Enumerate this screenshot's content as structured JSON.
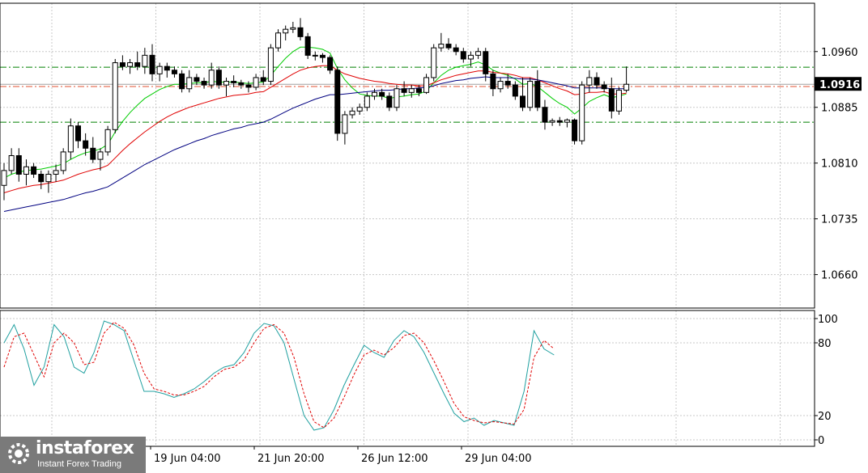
{
  "branding": {
    "name": "instaforex",
    "tagline": "Instant Forex Trading"
  },
  "last_price_label": "1.0916",
  "chart_data": [
    {
      "type": "candlestick",
      "symbol_panel": "price",
      "ylim": [
        1.0615,
        1.1025
      ],
      "y_ticks": [
        1.096,
        1.0885,
        1.081,
        1.0735,
        1.066
      ],
      "y_tick_labels": [
        "1.0960",
        "1.0885",
        "1.0810",
        "1.0735",
        "1.0660"
      ],
      "x_tick_labels": [
        "19 Jun 04:00",
        "21 Jun 20:00",
        "26 Jun 12:00",
        "29 Jun 04:00"
      ],
      "last_price": 1.0916,
      "horizontal_levels": [
        {
          "value": 1.0939,
          "color": "#008000",
          "style": "dash-dot"
        },
        {
          "value": 1.0913,
          "color": "#e05030",
          "style": "dash-dot"
        },
        {
          "value": 1.0865,
          "color": "#008000",
          "style": "dash-dot"
        }
      ],
      "candles": [
        [
          1.078,
          1.081,
          1.076,
          1.08
        ],
        [
          1.08,
          1.083,
          1.0795,
          1.082
        ],
        [
          1.082,
          1.083,
          1.0785,
          1.0795
        ],
        [
          1.0795,
          1.0815,
          1.078,
          1.0805
        ],
        [
          1.0805,
          1.081,
          1.079,
          1.0795
        ],
        [
          1.0795,
          1.08,
          1.0775,
          1.0785
        ],
        [
          1.0785,
          1.08,
          1.077,
          1.0795
        ],
        [
          1.0795,
          1.0808,
          1.0785,
          1.08
        ],
        [
          1.08,
          1.083,
          1.0795,
          1.0825
        ],
        [
          1.0825,
          1.087,
          1.0815,
          1.086
        ],
        [
          1.086,
          1.0865,
          1.083,
          1.084
        ],
        [
          1.084,
          1.085,
          1.082,
          1.083
        ],
        [
          1.083,
          1.0845,
          1.081,
          1.0815
        ],
        [
          1.0815,
          1.083,
          1.08,
          1.0825
        ],
        [
          1.0825,
          1.086,
          1.082,
          1.0855
        ],
        [
          1.0855,
          1.095,
          1.085,
          1.0945
        ],
        [
          1.0945,
          1.0955,
          1.0935,
          1.094
        ],
        [
          1.094,
          1.095,
          1.093,
          1.0945
        ],
        [
          1.0945,
          1.096,
          1.0935,
          1.094
        ],
        [
          1.094,
          1.0965,
          1.093,
          1.0955
        ],
        [
          1.0955,
          1.097,
          1.092,
          1.093
        ],
        [
          1.093,
          1.0945,
          1.092,
          1.094
        ],
        [
          1.094,
          1.0945,
          1.0925,
          1.0935
        ],
        [
          1.0935,
          1.094,
          1.0925,
          1.093
        ],
        [
          1.093,
          1.0935,
          1.0905,
          1.091
        ],
        [
          1.091,
          1.0935,
          1.0905,
          1.0925
        ],
        [
          1.0925,
          1.093,
          1.0915,
          1.092
        ],
        [
          1.092,
          1.0925,
          1.091,
          1.0915
        ],
        [
          1.0915,
          1.0945,
          1.091,
          1.0935
        ],
        [
          1.0935,
          1.094,
          1.091,
          1.0915
        ],
        [
          1.0915,
          1.0925,
          1.09,
          1.092
        ],
        [
          1.092,
          1.0928,
          1.0912,
          1.0918
        ],
        [
          1.0918,
          1.0922,
          1.091,
          1.0915
        ],
        [
          1.0915,
          1.092,
          1.0905,
          1.0912
        ],
        [
          1.0912,
          1.093,
          1.0908,
          1.0925
        ],
        [
          1.0925,
          1.0935,
          1.0915,
          1.092
        ],
        [
          1.092,
          1.097,
          1.0915,
          1.0965
        ],
        [
          1.0965,
          1.099,
          1.096,
          1.0985
        ],
        [
          1.0985,
          1.0995,
          1.0975,
          1.099
        ],
        [
          1.099,
          1.1,
          1.0985,
          1.0992
        ],
        [
          1.0992,
          1.1005,
          1.0975,
          1.098
        ],
        [
          1.098,
          1.0985,
          1.095,
          1.0955
        ],
        [
          1.0955,
          1.096,
          1.0948,
          1.0955
        ],
        [
          1.0955,
          1.0958,
          1.0945,
          1.0952
        ],
        [
          1.0952,
          1.0955,
          1.093,
          1.0935
        ],
        [
          1.0935,
          1.094,
          1.084,
          1.085
        ],
        [
          1.085,
          1.088,
          1.0835,
          1.0875
        ],
        [
          1.0875,
          1.0885,
          1.087,
          1.088
        ],
        [
          1.088,
          1.089,
          1.0875,
          1.0885
        ],
        [
          1.0885,
          1.0905,
          1.088,
          1.09
        ],
        [
          1.09,
          1.091,
          1.0895,
          1.0905
        ],
        [
          1.0905,
          1.091,
          1.0895,
          1.09
        ],
        [
          1.09,
          1.0905,
          1.088,
          1.0885
        ],
        [
          1.0885,
          1.0915,
          1.088,
          1.091
        ],
        [
          1.091,
          1.092,
          1.09,
          1.0905
        ],
        [
          1.0905,
          1.0915,
          1.0898,
          1.091
        ],
        [
          1.091,
          1.0915,
          1.09,
          1.0905
        ],
        [
          1.0905,
          1.093,
          1.0903,
          1.0925
        ],
        [
          1.0925,
          1.097,
          1.092,
          1.0965
        ],
        [
          1.0965,
          1.0985,
          1.096,
          1.097
        ],
        [
          1.097,
          1.0978,
          1.0962,
          1.0965
        ],
        [
          1.0965,
          1.097,
          1.0955,
          1.096
        ],
        [
          1.096,
          1.0965,
          1.0945,
          1.095
        ],
        [
          1.095,
          1.096,
          1.094,
          1.0955
        ],
        [
          1.0955,
          1.0965,
          1.095,
          1.096
        ],
        [
          1.096,
          1.0965,
          1.092,
          1.093
        ],
        [
          1.093,
          1.0935,
          1.09,
          1.091
        ],
        [
          1.091,
          1.0925,
          1.0905,
          1.092
        ],
        [
          1.092,
          1.093,
          1.091,
          1.0915
        ],
        [
          1.0915,
          1.092,
          1.0895,
          1.09
        ],
        [
          1.09,
          1.0925,
          1.088,
          1.0885
        ],
        [
          1.0885,
          1.0925,
          1.088,
          1.092
        ],
        [
          1.092,
          1.0935,
          1.088,
          1.0885
        ],
        [
          1.0885,
          1.0895,
          1.0855,
          1.0865
        ],
        [
          1.0865,
          1.087,
          1.086,
          1.0867
        ],
        [
          1.0867,
          1.0872,
          1.086,
          1.0865
        ],
        [
          1.0865,
          1.087,
          1.0858,
          1.0868
        ],
        [
          1.0868,
          1.087,
          1.0835,
          1.084
        ],
        [
          1.084,
          1.092,
          1.0835,
          1.0915
        ],
        [
          1.0915,
          1.0935,
          1.0905,
          1.0925
        ],
        [
          1.0925,
          1.0932,
          1.091,
          1.0915
        ],
        [
          1.0915,
          1.092,
          1.0905,
          1.091
        ],
        [
          1.091,
          1.0925,
          1.087,
          1.088
        ],
        [
          1.088,
          1.0912,
          1.0875,
          1.0908
        ],
        [
          1.0908,
          1.094,
          1.0905,
          1.0916
        ]
      ],
      "ma_series": [
        {
          "color": "#00cc00",
          "values": [
            1.079,
            1.0795,
            1.0798,
            1.08,
            1.0801,
            1.0802,
            1.0804,
            1.0806,
            1.0809,
            1.0815,
            1.082,
            1.0824,
            1.0826,
            1.0829,
            1.0835,
            1.0852,
            1.0866,
            1.0878,
            1.0888,
            1.0897,
            1.0903,
            1.0909,
            1.0913,
            1.0916,
            1.0916,
            1.0917,
            1.0918,
            1.0918,
            1.092,
            1.0919,
            1.0919,
            1.0919,
            1.0918,
            1.0917,
            1.0918,
            1.0919,
            1.0928,
            1.094,
            1.0951,
            1.096,
            1.0966,
            1.0966,
            1.0965,
            1.0963,
            1.0958,
            1.0937,
            1.0922,
            1.0911,
            1.0903,
            1.0901,
            1.09,
            1.09,
            1.0897,
            1.0899,
            1.09,
            1.0902,
            1.0903,
            1.0907,
            1.0918,
            1.0928,
            1.0935,
            1.0939,
            1.0941,
            1.0943,
            1.0946,
            1.0942,
            1.0935,
            1.0931,
            1.0928,
            1.0923,
            1.0916,
            1.0917,
            1.0913,
            1.0905,
            1.0897,
            1.089,
            1.0885,
            1.0876,
            1.0884,
            1.0893,
            1.0898,
            1.0902,
            1.0898,
            1.09,
            1.0903
          ]
        },
        {
          "color": "#e00000",
          "values": [
            1.077,
            1.0773,
            1.0776,
            1.0778,
            1.078,
            1.0781,
            1.0783,
            1.0785,
            1.0787,
            1.0791,
            1.0795,
            1.0798,
            1.0801,
            1.0803,
            1.0807,
            1.0817,
            1.0827,
            1.0836,
            1.0844,
            1.0852,
            1.0859,
            1.0866,
            1.0872,
            1.0877,
            1.0881,
            1.0885,
            1.0888,
            1.0891,
            1.0894,
            1.0897,
            1.0899,
            1.0901,
            1.0902,
            1.0903,
            1.0905,
            1.0906,
            1.0912,
            1.0918,
            1.0924,
            1.093,
            1.0935,
            1.0938,
            1.094,
            1.0941,
            1.0941,
            1.0935,
            1.093,
            1.0927,
            1.0924,
            1.0922,
            1.092,
            1.0919,
            1.0917,
            1.0916,
            1.0915,
            1.0915,
            1.0914,
            1.0914,
            1.0918,
            1.0922,
            1.0925,
            1.0928,
            1.093,
            1.0932,
            1.0934,
            1.0934,
            1.0932,
            1.0931,
            1.093,
            1.0928,
            1.0925,
            1.0925,
            1.0922,
            1.0918,
            1.0914,
            1.091,
            1.0907,
            1.0902,
            1.0903,
            1.0905,
            1.0905,
            1.0906,
            1.0903,
            1.0903,
            1.0904
          ]
        },
        {
          "color": "#000080",
          "values": [
            1.0745,
            1.0747,
            1.0749,
            1.0751,
            1.0753,
            1.0755,
            1.0757,
            1.0759,
            1.0761,
            1.0764,
            1.0767,
            1.077,
            1.0772,
            1.0775,
            1.0778,
            1.0784,
            1.079,
            1.0796,
            1.0802,
            1.0808,
            1.0813,
            1.0818,
            1.0823,
            1.0828,
            1.0832,
            1.0836,
            1.084,
            1.0843,
            1.0847,
            1.085,
            1.0853,
            1.0856,
            1.0858,
            1.0861,
            1.0863,
            1.0865,
            1.0869,
            1.0874,
            1.0879,
            1.0884,
            1.0888,
            1.0892,
            1.0896,
            1.0899,
            1.0902,
            1.0902,
            1.0903,
            1.0904,
            1.0905,
            1.0906,
            1.0907,
            1.0908,
            1.0908,
            1.0909,
            1.091,
            1.091,
            1.0911,
            1.0912,
            1.0914,
            1.0917,
            1.0919,
            1.0921,
            1.0922,
            1.0924,
            1.0925,
            1.0926,
            1.0925,
            1.0925,
            1.0925,
            1.0924,
            1.0923,
            1.0923,
            1.0922,
            1.092,
            1.0918,
            1.0916,
            1.0914,
            1.0911,
            1.0911,
            1.0911,
            1.0911,
            1.0911,
            1.091,
            1.091,
            1.091
          ]
        }
      ]
    },
    {
      "type": "line",
      "symbol_panel": "stochastic",
      "ylim": [
        0,
        100
      ],
      "y_ticks": [
        100,
        80,
        20,
        0
      ],
      "y_tick_labels": [
        "100",
        "80",
        "20",
        "0"
      ],
      "series": [
        {
          "color": "#20a0a0",
          "style": "solid",
          "values": [
            80,
            95,
            75,
            45,
            60,
            95,
            85,
            60,
            55,
            72,
            98,
            95,
            90,
            65,
            40,
            40,
            38,
            35,
            38,
            42,
            48,
            55,
            60,
            62,
            72,
            88,
            96,
            94,
            80,
            50,
            20,
            8,
            10,
            25,
            45,
            62,
            78,
            72,
            68,
            82,
            90,
            85,
            72,
            55,
            38,
            22,
            15,
            18,
            12,
            16,
            14,
            12,
            40,
            90,
            75,
            70
          ]
        },
        {
          "color": "#e00000",
          "style": "dashed",
          "values": [
            60,
            85,
            88,
            70,
            52,
            80,
            88,
            80,
            62,
            64,
            88,
            97,
            92,
            78,
            55,
            42,
            40,
            37,
            37,
            40,
            44,
            52,
            58,
            60,
            66,
            80,
            92,
            95,
            88,
            68,
            38,
            15,
            10,
            18,
            35,
            54,
            70,
            74,
            70,
            76,
            86,
            88,
            80,
            65,
            48,
            30,
            19,
            16,
            14,
            15,
            14,
            13,
            25,
            68,
            82,
            75
          ]
        }
      ]
    }
  ]
}
